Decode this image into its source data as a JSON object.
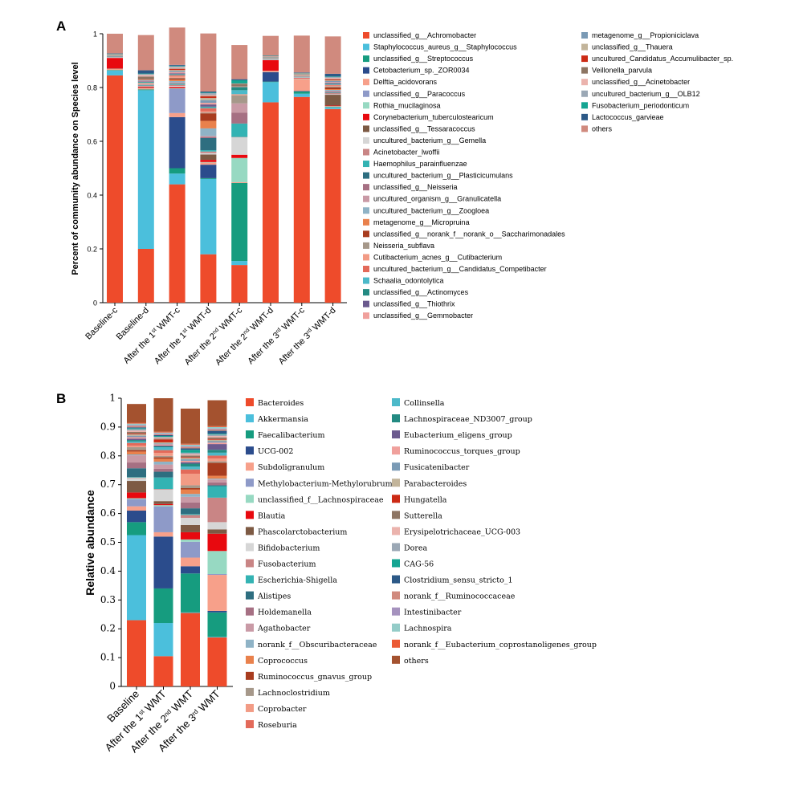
{
  "colors": {
    "red_main": "#EE4B2B",
    "sky": "#4BBFDC",
    "teal": "#169C7F",
    "navy": "#2B4C8C",
    "salmon": "#F7A08A",
    "lavender": "#8E9AC8",
    "mint": "#97D9C2",
    "brightred": "#E8090F",
    "brown": "#7D5A44",
    "lightgray": "#D6D6D6",
    "rose": "#C98585",
    "cyan": "#33B3B3",
    "slate": "#2E6E80",
    "mauve": "#A67083",
    "pinkish": "#C99AA6",
    "steel": "#8FB3C6",
    "orange": "#E9814C",
    "rust": "#A83C1F",
    "taupe": "#A6988A",
    "peach": "#F29B85",
    "coral": "#E36A5A",
    "aqua": "#4CB9C9",
    "darkteal": "#238A82",
    "purple": "#6B5A8E",
    "lightpink": "#F0A09C",
    "bluegray": "#7A9AB5",
    "tan": "#C2B49A",
    "darkred": "#CC2A15",
    "mocha": "#8D7563",
    "blush": "#EBB3AD",
    "gray2": "#9BA8B5",
    "teal2": "#14A592",
    "darkblue": "#2C5987",
    "dusty": "#D08A7E",
    "sienna": "#A4522F",
    "lilac": "#A592BE",
    "seafoam": "#94CCC8",
    "vermilion": "#EB5A34"
  },
  "chart_data": [
    {
      "panel": "A",
      "type": "bar",
      "stacked": true,
      "title": "",
      "ylabel": "Percent of community abundance on Species level",
      "ylim": [
        0,
        1
      ],
      "yticks": [
        "0",
        "0.2",
        "0.4",
        "0.6",
        "0.8",
        "1"
      ],
      "categories": [
        {
          "pre": "Baseline-c",
          "sup": "",
          "post": ""
        },
        {
          "pre": "Baseline-d",
          "sup": "",
          "post": ""
        },
        {
          "pre": "After the 1",
          "sup": "st",
          "post": " WMT-c"
        },
        {
          "pre": "After the 1",
          "sup": "st",
          "post": " WMT-d"
        },
        {
          "pre": "After the 2",
          "sup": "nd",
          "post": " WMT-c"
        },
        {
          "pre": "After the 2",
          "sup": "nd",
          "post": " WMT-d"
        },
        {
          "pre": "After the 3",
          "sup": "rd",
          "post": " WMT-c"
        },
        {
          "pre": "After the 3",
          "sup": "rd",
          "post": " WMT-d"
        }
      ],
      "series": [
        {
          "name": "unclassified_g__Achromobacter",
          "color": "#EE4B2B",
          "values": [
            0.845,
            0.2,
            0.44,
            0.18,
            0.14,
            0.745,
            0.765,
            0.72
          ]
        },
        {
          "name": "Staphylococcus_aureus_g__Staphylococcus",
          "color": "#4BBFDC",
          "values": [
            0.018,
            0.59,
            0.04,
            0.28,
            0.015,
            0.075,
            0.012,
            0.006
          ]
        },
        {
          "name": "unclassified_g__Streptococcus",
          "color": "#169C7F",
          "values": [
            0.002,
            0.003,
            0.02,
            0.003,
            0.29,
            0.002,
            0.008,
            0.002
          ]
        },
        {
          "name": "Cetobacterium_sp._ZOR0034",
          "color": "#2B4C8C",
          "values": [
            0,
            0,
            0.19,
            0.05,
            0,
            0.035,
            0.002,
            0
          ]
        },
        {
          "name": "Delftia_acidovorans",
          "color": "#F7A08A",
          "values": [
            0.004,
            0.004,
            0.015,
            0.008,
            0.003,
            0.004,
            0.045,
            0.002
          ]
        },
        {
          "name": "unclassified_g__Paracoccus",
          "color": "#8E9AC8",
          "values": [
            0,
            0,
            0.09,
            0,
            0,
            0,
            0,
            0
          ]
        },
        {
          "name": "Rothia_mucilaginosa",
          "color": "#97D9C2",
          "values": [
            0.001,
            0.002,
            0.002,
            0.002,
            0.09,
            0.001,
            0.001,
            0.001
          ]
        },
        {
          "name": "Corynebacterium_tuberculostearicum",
          "color": "#E8090F",
          "values": [
            0.04,
            0.004,
            0.005,
            0.008,
            0.012,
            0.04,
            0.002,
            0.002
          ]
        },
        {
          "name": "unclassified_g__Tessaracoccus",
          "color": "#7D5A44",
          "values": [
            0,
            0,
            0,
            0.02,
            0,
            0,
            0,
            0.04
          ]
        },
        {
          "name": "uncultured_bacterium_g__Gemella",
          "color": "#D6D6D6",
          "values": [
            0.002,
            0.002,
            0.004,
            0.005,
            0.065,
            0.002,
            0.002,
            0.002
          ]
        },
        {
          "name": "Acinetobacter_lwoffii",
          "color": "#C98585",
          "values": [
            0.001,
            0.001,
            0.004,
            0.006,
            0.001,
            0.001,
            0.001,
            0.004
          ]
        },
        {
          "name": "Haemophilus_parainfluenzae",
          "color": "#33B3B3",
          "values": [
            0.002,
            0.002,
            0.004,
            0.005,
            0.05,
            0.002,
            0.002,
            0.002
          ]
        },
        {
          "name": "uncultured_bacterium_g__Plasticicumulans",
          "color": "#2E6E80",
          "values": [
            0,
            0,
            0,
            0.045,
            0,
            0,
            0,
            0
          ]
        },
        {
          "name": "unclassified_g__Neisseria",
          "color": "#A67083",
          "values": [
            0.001,
            0.002,
            0.003,
            0.005,
            0.04,
            0.001,
            0.001,
            0.004
          ]
        },
        {
          "name": "uncultured_organism_g__Granulicatella",
          "color": "#C99AA6",
          "values": [
            0.001,
            0.001,
            0.002,
            0.003,
            0.035,
            0.001,
            0.001,
            0.002
          ]
        },
        {
          "name": "uncultured_bacterium_g__Zoogloea",
          "color": "#8FB3C6",
          "values": [
            0,
            0,
            0.005,
            0.028,
            0,
            0,
            0,
            0.004
          ]
        },
        {
          "name": "metagenome_g__Micropruina",
          "color": "#E9814C",
          "values": [
            0,
            0,
            0.005,
            0.028,
            0,
            0,
            0,
            0.003
          ]
        },
        {
          "name": "unclassified_g__norank_f__norank_o__Saccharimonadales",
          "color": "#A83C1F",
          "values": [
            0,
            0,
            0.005,
            0.028,
            0,
            0,
            0,
            0.006
          ]
        },
        {
          "name": "Neisseria_subflava",
          "color": "#A6988A",
          "values": [
            0.001,
            0.002,
            0.002,
            0.003,
            0.03,
            0.001,
            0.001,
            0.004
          ]
        },
        {
          "name": "Cutibacterium_acnes_g__Cutibacterium",
          "color": "#F29B85",
          "values": [
            0.002,
            0.004,
            0.006,
            0.004,
            0.004,
            0.002,
            0.004,
            0.003
          ]
        },
        {
          "name": "uncultured_bacterium_g__Candidatus_Competibacter",
          "color": "#E36A5A",
          "values": [
            0,
            0,
            0.004,
            0.012,
            0,
            0,
            0,
            0.003
          ]
        },
        {
          "name": "Schaalia_odontolytica",
          "color": "#4CB9C9",
          "values": [
            0.001,
            0.002,
            0.002,
            0.003,
            0.015,
            0.001,
            0.001,
            0.002
          ]
        },
        {
          "name": "unclassified_g__Actinomyces",
          "color": "#238A82",
          "values": [
            0.001,
            0.002,
            0.002,
            0.003,
            0.012,
            0.001,
            0.001,
            0.002
          ]
        },
        {
          "name": "unclassified_g__Thiothrix",
          "color": "#6B5A8E",
          "values": [
            0,
            0.002,
            0.003,
            0.008,
            0,
            0,
            0,
            0.003
          ]
        },
        {
          "name": "unclassified_g__Gemmobacter",
          "color": "#F0A09C",
          "values": [
            0.001,
            0.002,
            0.004,
            0.006,
            0.002,
            0.001,
            0.002,
            0.003
          ]
        },
        {
          "name": "metagenome_g__Propioniciclava",
          "color": "#7A9AB5",
          "values": [
            0,
            0.002,
            0.004,
            0.01,
            0,
            0,
            0,
            0.004
          ]
        },
        {
          "name": "unclassified_g__Thauera",
          "color": "#C2B49A",
          "values": [
            0,
            0.002,
            0.004,
            0.008,
            0,
            0,
            0,
            0.003
          ]
        },
        {
          "name": "uncultured_Candidatus_Accumulibacter_sp.",
          "color": "#CC2A15",
          "values": [
            0,
            0.002,
            0.004,
            0.006,
            0,
            0,
            0,
            0.003
          ]
        },
        {
          "name": "Veillonella_parvula",
          "color": "#8D7563",
          "values": [
            0.001,
            0.01,
            0.002,
            0.002,
            0.01,
            0.001,
            0.001,
            0.002
          ]
        },
        {
          "name": "unclassified_g__Acinetobacter",
          "color": "#EBB3AD",
          "values": [
            0.001,
            0.006,
            0.004,
            0.004,
            0.001,
            0.001,
            0.001,
            0.004
          ]
        },
        {
          "name": "uncultured_bacterium_g__OLB12",
          "color": "#9BA8B5",
          "values": [
            0,
            0.003,
            0.004,
            0.006,
            0,
            0,
            0,
            0.003
          ]
        },
        {
          "name": "Fusobacterium_periodonticum",
          "color": "#14A592",
          "values": [
            0.001,
            0.002,
            0.002,
            0.002,
            0.012,
            0.001,
            0.001,
            0.002
          ]
        },
        {
          "name": "Lactococcus_garvieae",
          "color": "#2C5987",
          "values": [
            0.001,
            0.012,
            0.003,
            0.004,
            0.004,
            0.001,
            0.002,
            0.01
          ]
        },
        {
          "name": "others",
          "color": "#D08A7E",
          "values": [
            0.073,
            0.131,
            0.139,
            0.216,
            0.127,
            0.073,
            0.137,
            0.139
          ]
        }
      ]
    },
    {
      "panel": "B",
      "type": "bar",
      "stacked": true,
      "title": "",
      "ylabel": "Relative abundance",
      "ylim": [
        0,
        1
      ],
      "yticks": [
        "0",
        "0.1",
        "0.2",
        "0.3",
        "0.4",
        "0.5",
        "0.6",
        "0.7",
        "0.8",
        "0.9",
        "1"
      ],
      "categories": [
        {
          "pre": "Baseline",
          "sup": "",
          "post": ""
        },
        {
          "pre": "After the 1",
          "sup": "st",
          "post": " WMT"
        },
        {
          "pre": "After the 2",
          "sup": "nd",
          "post": " WMT"
        },
        {
          "pre": "After the 3",
          "sup": "rd",
          "post": " WMT"
        }
      ],
      "series": [
        {
          "name": "Bacteroides",
          "color": "#EE4B2B",
          "values": [
            0.23,
            0.105,
            0.255,
            0.17
          ]
        },
        {
          "name": "Akkermansia",
          "color": "#4BBFDC",
          "values": [
            0.295,
            0.115,
            0.002,
            0.002
          ]
        },
        {
          "name": "Faecalibacterium",
          "color": "#169C7F",
          "values": [
            0.045,
            0.12,
            0.135,
            0.085
          ]
        },
        {
          "name": "UCG-002",
          "color": "#2B4C8C",
          "values": [
            0.04,
            0.18,
            0.025,
            0.005
          ]
        },
        {
          "name": "Subdoligranulum",
          "color": "#F7A08A",
          "values": [
            0.015,
            0.015,
            0.03,
            0.125
          ]
        },
        {
          "name": "Methylobacterium-Methylorubrum",
          "color": "#8E9AC8",
          "values": [
            0.025,
            0.09,
            0.055,
            0.003
          ]
        },
        {
          "name": "unclassified_f__Lachnospiraceae",
          "color": "#97D9C2",
          "values": [
            0.003,
            0.004,
            0.008,
            0.08
          ]
        },
        {
          "name": "Blautia",
          "color": "#E8090F",
          "values": [
            0.02,
            0.004,
            0.025,
            0.06
          ]
        },
        {
          "name": "Phascolarctobacterium",
          "color": "#7D5A44",
          "values": [
            0.04,
            0.01,
            0.025,
            0.015
          ]
        },
        {
          "name": "Bifidobacterium",
          "color": "#D6D6D6",
          "values": [
            0.01,
            0.04,
            0.025,
            0.025
          ]
        },
        {
          "name": "Fusobacterium",
          "color": "#C98585",
          "values": [
            0.002,
            0.002,
            0.01,
            0.085
          ]
        },
        {
          "name": "Escherichia-Shigella",
          "color": "#33B3B3",
          "values": [
            0.002,
            0.04,
            0.003,
            0.04
          ]
        },
        {
          "name": "Alistipes",
          "color": "#2E6E80",
          "values": [
            0.03,
            0.02,
            0.02,
            0.003
          ]
        },
        {
          "name": "Holdemanella",
          "color": "#A67083",
          "values": [
            0.02,
            0.01,
            0.02,
            0.01
          ]
        },
        {
          "name": "Agathobacter",
          "color": "#C99AA6",
          "values": [
            0.025,
            0.015,
            0.02,
            0.01
          ]
        },
        {
          "name": "norank_f__Obscuribacteraceae",
          "color": "#8FB3C6",
          "values": [
            0.003,
            0.01,
            0.01,
            0.003
          ]
        },
        {
          "name": "Coprococcus",
          "color": "#E9814C",
          "values": [
            0.01,
            0.01,
            0.015,
            0.01
          ]
        },
        {
          "name": "Ruminococcus_gnavus_group",
          "color": "#A83C1F",
          "values": [
            0.005,
            0.005,
            0.005,
            0.045
          ]
        },
        {
          "name": "Lachnoclostridium",
          "color": "#A6988A",
          "values": [
            0.01,
            0.005,
            0.01,
            0.005
          ]
        },
        {
          "name": "Coprobacter",
          "color": "#F29B85",
          "values": [
            0.005,
            0.01,
            0.04,
            0.01
          ]
        },
        {
          "name": "Roseburia",
          "color": "#E36A5A",
          "values": [
            0.01,
            0.01,
            0.015,
            0.01
          ]
        },
        {
          "name": "Collinsella",
          "color": "#4CB9C9",
          "values": [
            0.005,
            0.01,
            0.01,
            0.01
          ]
        },
        {
          "name": "Lachnospiraceae_ND3007_group",
          "color": "#238A82",
          "values": [
            0.005,
            0.003,
            0.01,
            0.01
          ]
        },
        {
          "name": "Eubacterium_eligens_group",
          "color": "#6B5A8E",
          "values": [
            0.005,
            0.003,
            0.005,
            0.02
          ]
        },
        {
          "name": "Ruminococcus_torques_group",
          "color": "#F0A09C",
          "values": [
            0.005,
            0.004,
            0.005,
            0.005
          ]
        },
        {
          "name": "Fusicatenibacter",
          "color": "#7A9AB5",
          "values": [
            0.005,
            0.003,
            0.005,
            0.005
          ]
        },
        {
          "name": "Parabacteroides",
          "color": "#C2B49A",
          "values": [
            0.005,
            0.004,
            0.005,
            0.005
          ]
        },
        {
          "name": "Hungatella",
          "color": "#CC2A15",
          "values": [
            0.003,
            0.01,
            0.003,
            0.003
          ]
        },
        {
          "name": "Sutterella",
          "color": "#8D7563",
          "values": [
            0.005,
            0.003,
            0.005,
            0.005
          ]
        },
        {
          "name": "Erysipelotrichaceae_UCG-003",
          "color": "#EBB3AD",
          "values": [
            0.005,
            0.003,
            0.005,
            0.005
          ]
        },
        {
          "name": "Dorea",
          "color": "#9BA8B5",
          "values": [
            0.005,
            0.003,
            0.005,
            0.005
          ]
        },
        {
          "name": "CAG-56",
          "color": "#14A592",
          "values": [
            0.003,
            0.003,
            0.01,
            0.003
          ]
        },
        {
          "name": "Clostridium_sensu_stricto_1",
          "color": "#2C5987",
          "values": [
            0.003,
            0.003,
            0.005,
            0.01
          ]
        },
        {
          "name": "norank_f__Ruminococcaceae",
          "color": "#D08A7E",
          "values": [
            0.005,
            0.003,
            0.005,
            0.005
          ]
        },
        {
          "name": "Intestinibacter",
          "color": "#A592BE",
          "values": [
            0.003,
            0.003,
            0.003,
            0.003
          ]
        },
        {
          "name": "Lachnospira",
          "color": "#94CCC8",
          "values": [
            0.005,
            0.003,
            0.005,
            0.005
          ]
        },
        {
          "name": "norank_f__Eubacterium_coprostanoligenes_group",
          "color": "#EB5A34",
          "values": [
            0.003,
            0.003,
            0.003,
            0.003
          ]
        },
        {
          "name": "others",
          "color": "#A4522F",
          "values": [
            0.065,
            0.116,
            0.122,
            0.09
          ]
        }
      ]
    }
  ]
}
